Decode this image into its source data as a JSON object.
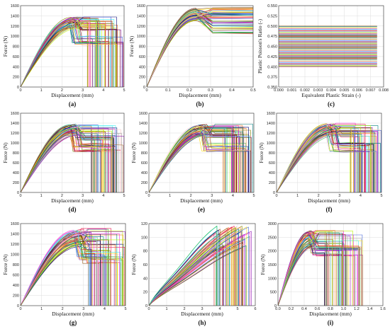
{
  "figure": {
    "panels": [
      {
        "id": "a",
        "label": "(a)",
        "xlabel": "Displacement (mm)",
        "ylabel": "Force (N)"
      },
      {
        "id": "b",
        "label": "(b)",
        "xlabel": "Displacement (mm)",
        "ylabel": "Force (N)"
      },
      {
        "id": "c",
        "label": "(c)",
        "xlabel": "Equivalent Plastic Strain (-)",
        "ylabel": "Plastic Poisson's Ratio (-)"
      },
      {
        "id": "d",
        "label": "(d)",
        "xlabel": "Displacement (mm)",
        "ylabel": "Force (N)"
      },
      {
        "id": "e",
        "label": "(e)",
        "xlabel": "Displacement (mm)",
        "ylabel": "Force (N)"
      },
      {
        "id": "f",
        "label": "(f)",
        "xlabel": "Displacement (mm)",
        "ylabel": "Force (N)"
      },
      {
        "id": "g",
        "label": "(g)",
        "xlabel": "Displacement (mm)",
        "ylabel": "Force (N)"
      },
      {
        "id": "h",
        "label": "(h)",
        "xlabel": "Displacement (mm)",
        "ylabel": "Force (N)"
      },
      {
        "id": "i",
        "label": "(i)",
        "xlabel": "Displacement (mm)",
        "ylabel": "Force (N)"
      }
    ]
  },
  "chart_data": [
    {
      "id": "a",
      "type": "line",
      "curve_family": "force-displacement with failure drop",
      "xlim": [
        0,
        5
      ],
      "ylim": [
        0,
        1600
      ],
      "xticks": [
        "0",
        "1",
        "2",
        "3",
        "4",
        "5"
      ],
      "yticks": [
        "0",
        "200",
        "400",
        "600",
        "800",
        "1000",
        "1200",
        "1400",
        "1600"
      ],
      "peak_range": [
        1150,
        1380
      ],
      "peak_x": 2.6,
      "dip_at": 2.6,
      "dip_to": [
        820,
        1000
      ],
      "plateau_range": [
        1100,
        1380
      ],
      "drop_range": [
        3.2,
        5.0
      ],
      "colors": [
        "#e6194b",
        "#3cb44b",
        "#ffe119",
        "#4363d8",
        "#f58231",
        "#911eb4",
        "#46f0f0",
        "#f032e6",
        "#bcf60c",
        "#fabebe",
        "#008080",
        "#9a6324",
        "#800000",
        "#808000",
        "#000075",
        "#a9a9a9"
      ]
    },
    {
      "id": "b",
      "type": "line",
      "curve_family": "force-displacement plateau",
      "xlim": [
        0,
        0.5
      ],
      "ylim": [
        0,
        1600
      ],
      "xticks": [
        "0",
        "0.1",
        "0.2",
        "0.3",
        "0.4",
        "0.5"
      ],
      "yticks": [
        "0",
        "200",
        "400",
        "600",
        "800",
        "1000",
        "1200",
        "1400",
        "1600"
      ],
      "peak_range": [
        1300,
        1560
      ],
      "peak_x": 0.23,
      "plateau_range": [
        1050,
        1560
      ]
    },
    {
      "id": "c",
      "type": "line",
      "curve_family": "constant horizontal lines",
      "xlim": [
        0,
        0.008
      ],
      "ylim": [
        0.35,
        0.55
      ],
      "x_end": 0.0075,
      "xticks": [
        "0.000",
        "0.001",
        "0.002",
        "0.003",
        "0.004",
        "0.005",
        "0.006",
        "0.007",
        "0.008"
      ],
      "yticks": [
        "0.350",
        "0.375",
        "0.400",
        "0.425",
        "0.450",
        "0.475",
        "0.500",
        "0.525",
        "0.550"
      ],
      "value_range": [
        0.4,
        0.5
      ]
    },
    {
      "id": "d",
      "type": "line",
      "curve_family": "force-displacement with failure drop",
      "xlim": [
        0,
        5
      ],
      "ylim": [
        0,
        1600
      ],
      "xticks": [
        "0",
        "1",
        "2",
        "3",
        "4",
        "5"
      ],
      "yticks": [
        "0",
        "200",
        "400",
        "600",
        "800",
        "1000",
        "1200",
        "1400",
        "1600"
      ],
      "peak_range": [
        1150,
        1380
      ],
      "peak_x": 2.6,
      "dip_at": 2.6,
      "dip_to": [
        820,
        1000
      ],
      "plateau_range": [
        1050,
        1380
      ],
      "drop_range": [
        3.4,
        5.0
      ]
    },
    {
      "id": "e",
      "type": "line",
      "curve_family": "force-displacement with failure drop",
      "xlim": [
        0,
        5
      ],
      "ylim": [
        0,
        1600
      ],
      "xticks": [
        "0",
        "1",
        "2",
        "3",
        "4",
        "5"
      ],
      "yticks": [
        "0",
        "200",
        "400",
        "600",
        "800",
        "1000",
        "1200",
        "1400",
        "1600"
      ],
      "peak_range": [
        1150,
        1380
      ],
      "peak_x": 2.6,
      "dip_at": 2.6,
      "dip_to": [
        820,
        1000
      ],
      "plateau_range": [
        1100,
        1380
      ],
      "drop_range": [
        3.5,
        5.0
      ]
    },
    {
      "id": "f",
      "type": "line",
      "curve_family": "force-displacement with failure drop",
      "xlim": [
        0,
        5
      ],
      "ylim": [
        0,
        1600
      ],
      "xticks": [
        "0",
        "1",
        "2",
        "3",
        "4",
        "5"
      ],
      "yticks": [
        "0",
        "200",
        "400",
        "600",
        "800",
        "1000",
        "1200",
        "1400",
        "1600"
      ],
      "peak_range": [
        1150,
        1400
      ],
      "peak_x": 2.6,
      "dip_at": 2.6,
      "dip_to": [
        820,
        1000
      ],
      "plateau_range": [
        1100,
        1400
      ],
      "drop_range": [
        3.5,
        5.0
      ]
    },
    {
      "id": "g",
      "type": "line",
      "curve_family": "force-displacement with failure drop",
      "xlim": [
        0,
        5
      ],
      "ylim": [
        0,
        1600
      ],
      "xticks": [
        "0",
        "1",
        "2",
        "3",
        "4",
        "5"
      ],
      "yticks": [
        "0",
        "200",
        "400",
        "600",
        "800",
        "1000",
        "1200",
        "1400",
        "1600"
      ],
      "peak_range": [
        1150,
        1520
      ],
      "peak_x": 2.8,
      "dip_at": 2.8,
      "dip_to": [
        820,
        1050
      ],
      "plateau_range": [
        1000,
        1520
      ],
      "drop_range": [
        3.2,
        5.0
      ]
    },
    {
      "id": "h",
      "type": "line",
      "curve_family": "monotonic rise then drop",
      "xlim": [
        0,
        6.2
      ],
      "ylim": [
        0,
        125
      ],
      "xticks": [
        "0",
        "1",
        "2",
        "3",
        "4",
        "5",
        "6"
      ],
      "yticks": [
        "0",
        "20",
        "40",
        "60",
        "80",
        "100",
        "120"
      ],
      "peak_range": [
        85,
        120
      ],
      "drop_range": [
        3.8,
        6.0
      ]
    },
    {
      "id": "i",
      "type": "line",
      "curve_family": "force-displacement with failure drop",
      "xlim": [
        0,
        1.6
      ],
      "ylim": [
        0,
        3000
      ],
      "xticks": [
        "0.0",
        "0.2",
        "0.4",
        "0.6",
        "0.8",
        "1.0",
        "1.2",
        "1.4",
        "1.6"
      ],
      "yticks": [
        "0",
        "500",
        "1000",
        "1500",
        "2000",
        "2500",
        "3000"
      ],
      "peak_range": [
        2100,
        2750
      ],
      "peak_x": 0.5,
      "dip_at": 0.55,
      "dip_to": [
        1800,
        2200
      ],
      "plateau_range": [
        2000,
        2750
      ],
      "drop_range": [
        0.65,
        1.3
      ]
    }
  ]
}
